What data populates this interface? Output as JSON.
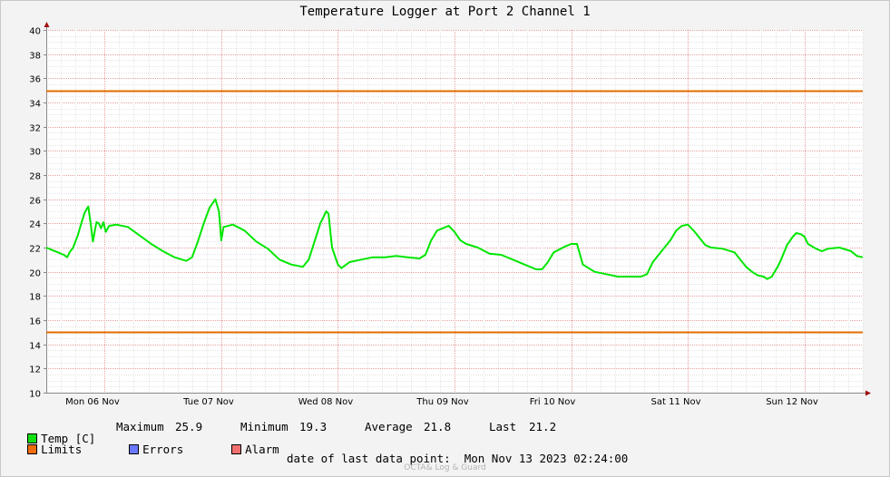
{
  "title": "Temperature Logger at Port 2 Channel 1",
  "chart_data": {
    "type": "line",
    "x_ticks": [
      "Mon 06 Nov",
      "Tue 07 Nov",
      "Wed 08 Nov",
      "Thu 09 Nov",
      "Fri 10 Nov",
      "Sat 11 Nov",
      "Sun 12 Nov"
    ],
    "y_ticks": [
      10,
      12,
      14,
      16,
      18,
      20,
      22,
      24,
      26,
      28,
      30,
      32,
      34,
      36,
      38,
      40
    ],
    "ylim": [
      10,
      40
    ],
    "xlim_days": [
      0,
      7
    ],
    "grid": true,
    "limits": {
      "upper": 35,
      "lower": 15,
      "color": "#e36b00"
    },
    "series": [
      {
        "name": "Temp [C]",
        "color": "#00e600",
        "points": [
          [
            0.0,
            22.0
          ],
          [
            0.05,
            21.8
          ],
          [
            0.1,
            21.6
          ],
          [
            0.15,
            21.4
          ],
          [
            0.18,
            21.2
          ],
          [
            0.2,
            21.6
          ],
          [
            0.23,
            22.0
          ],
          [
            0.27,
            23.0
          ],
          [
            0.3,
            24.0
          ],
          [
            0.33,
            24.9
          ],
          [
            0.36,
            25.4
          ],
          [
            0.38,
            24.0
          ],
          [
            0.4,
            22.5
          ],
          [
            0.43,
            24.1
          ],
          [
            0.45,
            24.0
          ],
          [
            0.47,
            23.6
          ],
          [
            0.49,
            24.1
          ],
          [
            0.51,
            23.3
          ],
          [
            0.54,
            23.8
          ],
          [
            0.6,
            23.9
          ],
          [
            0.7,
            23.7
          ],
          [
            0.8,
            23.0
          ],
          [
            0.9,
            22.3
          ],
          [
            1.0,
            21.7
          ],
          [
            1.1,
            21.2
          ],
          [
            1.2,
            20.9
          ],
          [
            1.25,
            21.2
          ],
          [
            1.3,
            22.5
          ],
          [
            1.35,
            24.0
          ],
          [
            1.4,
            25.3
          ],
          [
            1.45,
            26.0
          ],
          [
            1.48,
            25.0
          ],
          [
            1.5,
            22.6
          ],
          [
            1.52,
            23.7
          ],
          [
            1.6,
            23.9
          ],
          [
            1.7,
            23.4
          ],
          [
            1.8,
            22.5
          ],
          [
            1.9,
            21.9
          ],
          [
            2.0,
            21.0
          ],
          [
            2.1,
            20.6
          ],
          [
            2.2,
            20.4
          ],
          [
            2.25,
            21.0
          ],
          [
            2.3,
            22.5
          ],
          [
            2.35,
            24.0
          ],
          [
            2.4,
            25.0
          ],
          [
            2.42,
            24.8
          ],
          [
            2.45,
            22.0
          ],
          [
            2.5,
            20.6
          ],
          [
            2.53,
            20.3
          ],
          [
            2.6,
            20.8
          ],
          [
            2.7,
            21.0
          ],
          [
            2.8,
            21.2
          ],
          [
            2.9,
            21.2
          ],
          [
            3.0,
            21.3
          ],
          [
            3.1,
            21.2
          ],
          [
            3.2,
            21.1
          ],
          [
            3.25,
            21.4
          ],
          [
            3.3,
            22.6
          ],
          [
            3.35,
            23.4
          ],
          [
            3.4,
            23.6
          ],
          [
            3.45,
            23.8
          ],
          [
            3.5,
            23.3
          ],
          [
            3.55,
            22.6
          ],
          [
            3.6,
            22.3
          ],
          [
            3.7,
            22.0
          ],
          [
            3.8,
            21.5
          ],
          [
            3.9,
            21.4
          ],
          [
            4.0,
            21.0
          ],
          [
            4.1,
            20.6
          ],
          [
            4.2,
            20.2
          ],
          [
            4.25,
            20.2
          ],
          [
            4.3,
            20.8
          ],
          [
            4.35,
            21.6
          ],
          [
            4.45,
            22.1
          ],
          [
            4.5,
            22.3
          ],
          [
            4.55,
            22.3
          ],
          [
            4.6,
            20.6
          ],
          [
            4.7,
            20.0
          ],
          [
            4.8,
            19.8
          ],
          [
            4.9,
            19.6
          ],
          [
            5.0,
            19.6
          ],
          [
            5.1,
            19.6
          ],
          [
            5.15,
            19.8
          ],
          [
            5.2,
            20.8
          ],
          [
            5.3,
            22.0
          ],
          [
            5.35,
            22.6
          ],
          [
            5.4,
            23.4
          ],
          [
            5.45,
            23.8
          ],
          [
            5.5,
            23.9
          ],
          [
            5.55,
            23.4
          ],
          [
            5.6,
            22.8
          ],
          [
            5.65,
            22.2
          ],
          [
            5.7,
            22.0
          ],
          [
            5.8,
            21.9
          ],
          [
            5.9,
            21.6
          ],
          [
            5.95,
            21.0
          ],
          [
            6.0,
            20.4
          ],
          [
            6.05,
            20.0
          ],
          [
            6.1,
            19.7
          ],
          [
            6.15,
            19.6
          ],
          [
            6.18,
            19.4
          ],
          [
            6.22,
            19.6
          ],
          [
            6.27,
            20.4
          ],
          [
            6.3,
            21.0
          ],
          [
            6.35,
            22.2
          ],
          [
            6.4,
            22.9
          ],
          [
            6.43,
            23.2
          ],
          [
            6.47,
            23.1
          ],
          [
            6.5,
            22.9
          ],
          [
            6.53,
            22.3
          ],
          [
            6.6,
            21.9
          ],
          [
            6.65,
            21.7
          ],
          [
            6.7,
            21.9
          ],
          [
            6.8,
            22.0
          ],
          [
            6.9,
            21.7
          ],
          [
            6.95,
            21.3
          ],
          [
            7.0,
            21.2
          ]
        ]
      }
    ]
  },
  "legend": {
    "items": [
      {
        "label": "Temp [C]",
        "color": "#10e010"
      },
      {
        "label": "Limits",
        "color": "#f06c0a"
      },
      {
        "label": "Errors",
        "color": "#6a78ff"
      },
      {
        "label": "Alarm",
        "color": "#f07070"
      }
    ],
    "stats": {
      "max_label": "Maximum",
      "max_value": "25.9",
      "min_label": "Minimum",
      "min_value": "19.3",
      "avg_label": "Average",
      "avg_value": "21.8",
      "last_label": "Last",
      "last_value": "21.2"
    }
  },
  "footer": {
    "label": "date of last data point:",
    "value": "Mon Nov 13 2023 02:24:00"
  },
  "credit": "OCTA& Log & Guard"
}
